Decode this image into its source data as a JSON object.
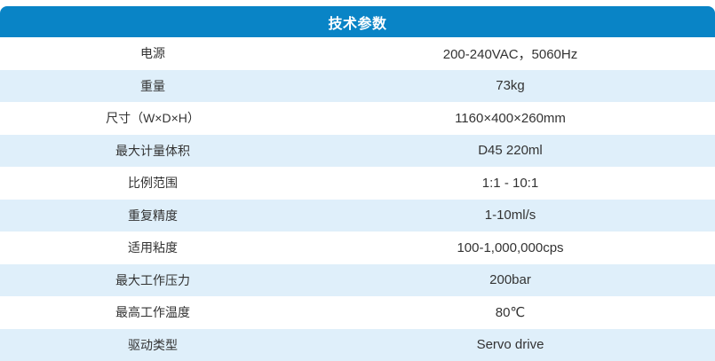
{
  "table": {
    "title": "技术参数",
    "rows": [
      {
        "label": "电源",
        "value": "200-240VAC，5060Hz"
      },
      {
        "label": "重量",
        "value": "73kg"
      },
      {
        "label": "尺寸（W×D×H）",
        "value": "1160×400×260mm"
      },
      {
        "label": "最大计量体积",
        "value": "D45 220ml"
      },
      {
        "label": "比例范围",
        "value": "1:1 - 10:1"
      },
      {
        "label": "重复精度",
        "value": "1-10ml/s"
      },
      {
        "label": "适用粘度",
        "value": "100-1,000,000cps"
      },
      {
        "label": "最大工作压力",
        "value": "200bar"
      },
      {
        "label": "最高工作温度",
        "value": "80℃"
      },
      {
        "label": "驱动类型",
        "value": "Servo drive"
      }
    ],
    "colors": {
      "header_bg": "#0984C6",
      "header_text": "#FFFFFF",
      "row_bg": "#FFFFFF",
      "row_alt_bg": "#DFEFFA",
      "text": "#333333"
    }
  }
}
